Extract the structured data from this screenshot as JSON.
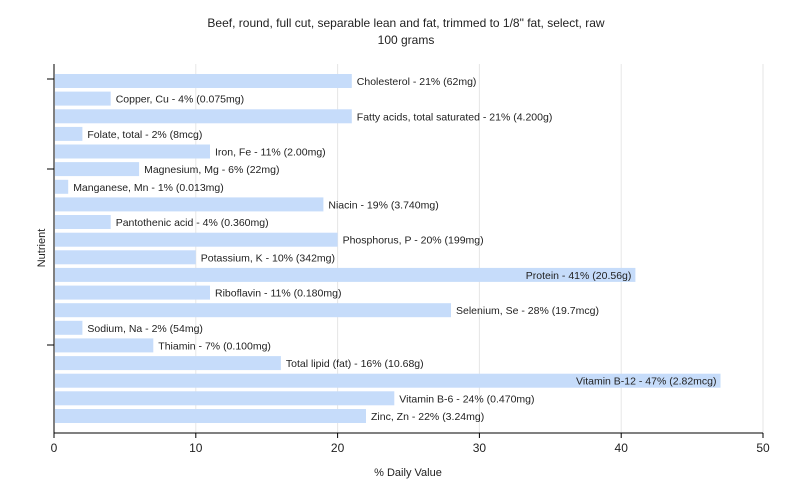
{
  "chart_data": {
    "type": "bar",
    "orientation": "horizontal",
    "title": "Beef, round, full cut, separable lean and fat, trimmed to 1/8\" fat, select, raw",
    "subtitle": "100 grams",
    "xlabel": "% Daily Value",
    "ylabel": "Nutrient",
    "xlim": [
      0,
      50
    ],
    "xticks": [
      0,
      10,
      20,
      30,
      40,
      50
    ],
    "grid": true,
    "colors": {
      "bar": "#c6dcfa",
      "grid": "#e6e6e6",
      "axis": "#000000",
      "text": "#222222"
    },
    "categories": [
      "Cholesterol",
      "Copper, Cu",
      "Fatty acids, total saturated",
      "Folate, total",
      "Iron, Fe",
      "Magnesium, Mg",
      "Manganese, Mn",
      "Niacin",
      "Pantothenic acid",
      "Phosphorus, P",
      "Potassium, K",
      "Protein",
      "Riboflavin",
      "Selenium, Se",
      "Sodium, Na",
      "Thiamin",
      "Total lipid (fat)",
      "Vitamin B-12",
      "Vitamin B-6",
      "Zinc, Zn"
    ],
    "values": [
      21,
      4,
      21,
      2,
      11,
      6,
      1,
      19,
      4,
      20,
      10,
      41,
      11,
      28,
      2,
      7,
      16,
      47,
      24,
      22
    ],
    "labels": [
      "Cholesterol - 21% (62mg)",
      "Copper, Cu - 4% (0.075mg)",
      "Fatty acids, total saturated - 21% (4.200g)",
      "Folate, total - 2% (8mcg)",
      "Iron, Fe - 11% (2.00mg)",
      "Magnesium, Mg - 6% (22mg)",
      "Manganese, Mn - 1% (0.013mg)",
      "Niacin - 19% (3.740mg)",
      "Pantothenic acid - 4% (0.360mg)",
      "Phosphorus, P - 20% (199mg)",
      "Potassium, K - 10% (342mg)",
      "Protein - 41% (20.56g)",
      "Riboflavin - 11% (0.180mg)",
      "Selenium, Se - 28% (19.7mcg)",
      "Sodium, Na - 2% (54mg)",
      "Thiamin - 7% (0.100mg)",
      "Total lipid (fat) - 16% (10.68g)",
      "Vitamin B-12 - 47% (2.82mcg)",
      "Vitamin B-6 - 24% (0.470mg)",
      "Zinc, Zn - 22% (3.24mg)"
    ]
  }
}
